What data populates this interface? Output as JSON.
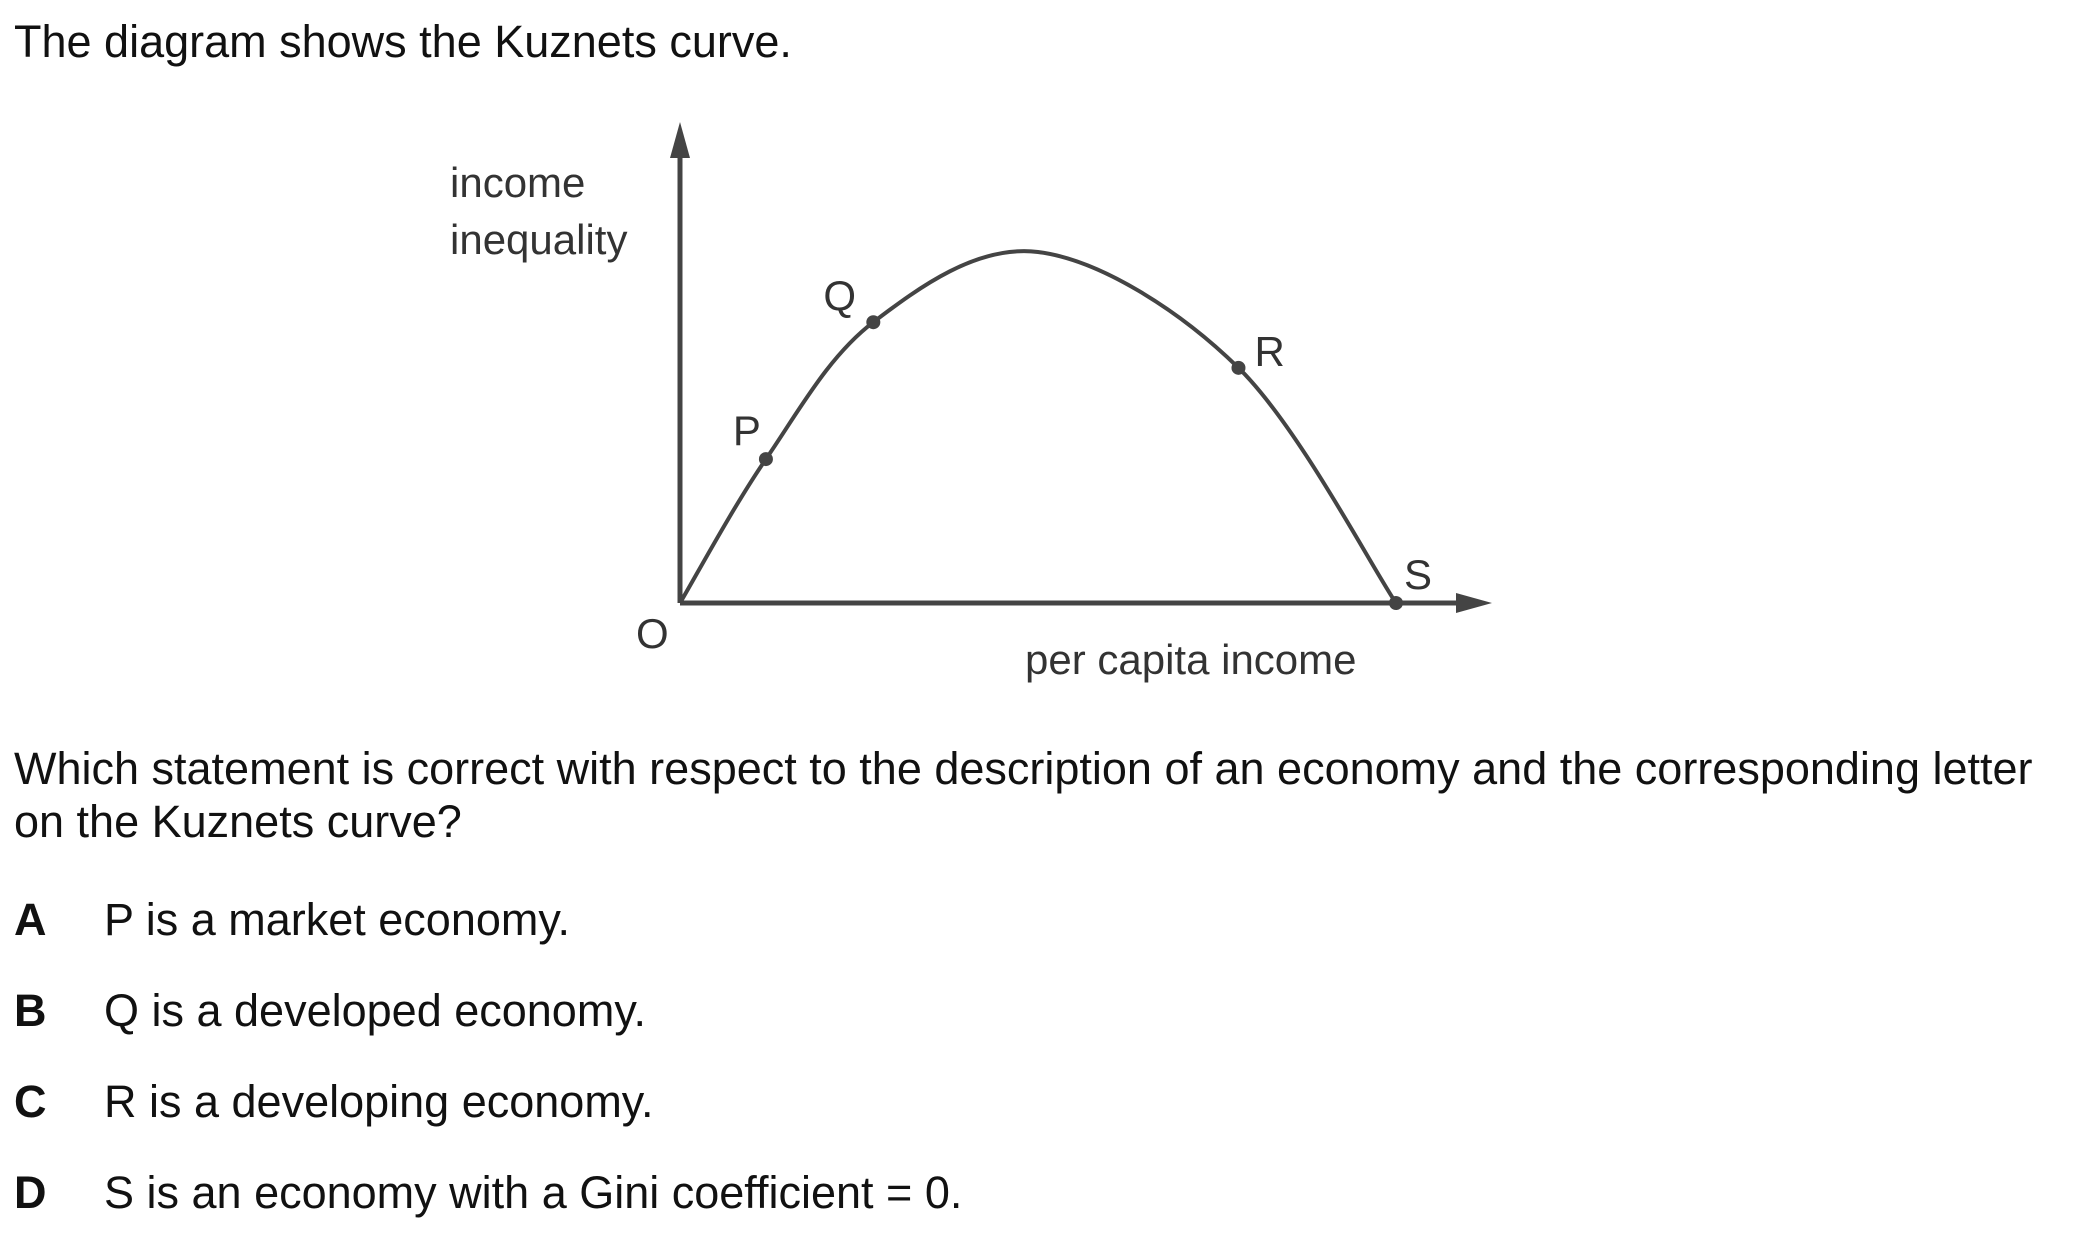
{
  "intro": "The diagram shows the Kuznets curve.",
  "diagram": {
    "y_axis_label_lines": [
      "income",
      "inequality"
    ],
    "x_axis_label": "per capita income",
    "origin_label": "O",
    "points": [
      {
        "label": "P",
        "income": 12,
        "inequality": 41
      },
      {
        "label": "Q",
        "income": 27,
        "inequality": 80
      },
      {
        "label": "R",
        "income": 78,
        "inequality": 67
      },
      {
        "label": "S",
        "income": 100,
        "inequality": 0
      }
    ],
    "peak": {
      "income": 50,
      "inequality": 100
    },
    "line_color": "#444444"
  },
  "question": "Which statement is correct with respect to the description of an economy and the corresponding letter on the Kuznets curve?",
  "options": [
    {
      "letter": "A",
      "text": "P is a market economy."
    },
    {
      "letter": "B",
      "text": "Q is a developed economy."
    },
    {
      "letter": "C",
      "text": "R is a developing economy."
    },
    {
      "letter": "D",
      "text": "S is an economy with a Gini coefficient = 0."
    }
  ]
}
